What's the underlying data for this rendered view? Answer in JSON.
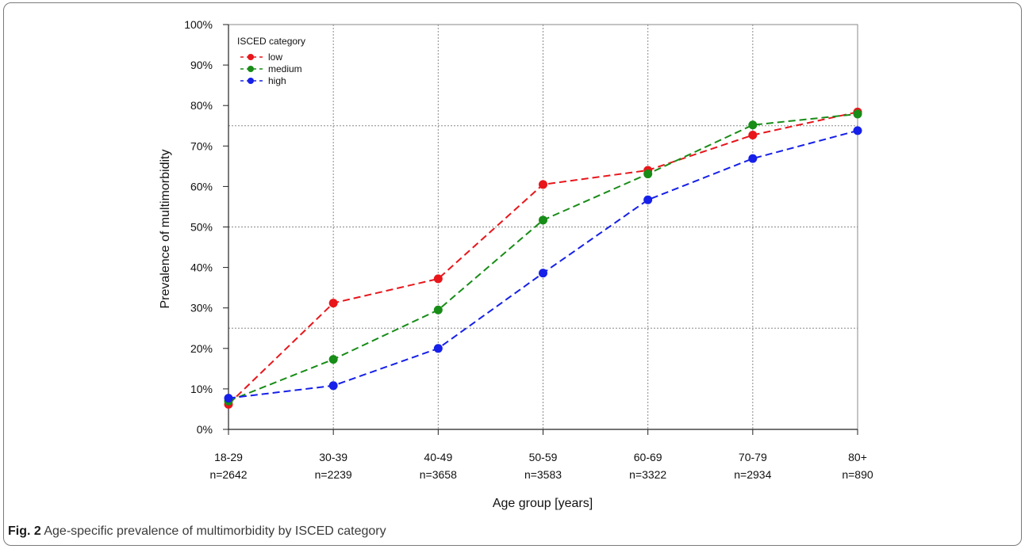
{
  "chart_data": {
    "type": "line",
    "xlabel": "Age group [years]",
    "ylabel": "Prevalence of multimorbidity",
    "categories": [
      "18-29",
      "30-39",
      "40-49",
      "50-59",
      "60-69",
      "70-79",
      "80+"
    ],
    "category_counts": [
      "n=2642",
      "n=2239",
      "n=3658",
      "n=3583",
      "n=3322",
      "n=2934",
      "n=890"
    ],
    "ylim": [
      0,
      100
    ],
    "yticks": [
      "0%",
      "10%",
      "20%",
      "30%",
      "40%",
      "50%",
      "60%",
      "70%",
      "80%",
      "90%",
      "100%"
    ],
    "ytick_values": [
      0,
      10,
      20,
      30,
      40,
      50,
      60,
      70,
      80,
      90,
      100
    ],
    "reference_lines": [
      25,
      75
    ],
    "grid": true,
    "legend": {
      "title": "ISCED category",
      "placement": "top-left"
    },
    "series": [
      {
        "name": "low",
        "color": "#e8161b",
        "values": [
          6.2,
          31.2,
          37.2,
          60.5,
          64.0,
          72.7,
          78.4
        ]
      },
      {
        "name": "medium",
        "color": "#178c17",
        "values": [
          7.0,
          17.3,
          29.5,
          51.7,
          63.1,
          75.2,
          77.9
        ]
      },
      {
        "name": "high",
        "color": "#1620e8",
        "values": [
          7.7,
          10.8,
          20.0,
          38.6,
          56.7,
          66.9,
          73.8
        ]
      }
    ]
  },
  "caption": {
    "label": "Fig. 2",
    "text": "Age-specific prevalence of multimorbidity by ISCED category"
  }
}
